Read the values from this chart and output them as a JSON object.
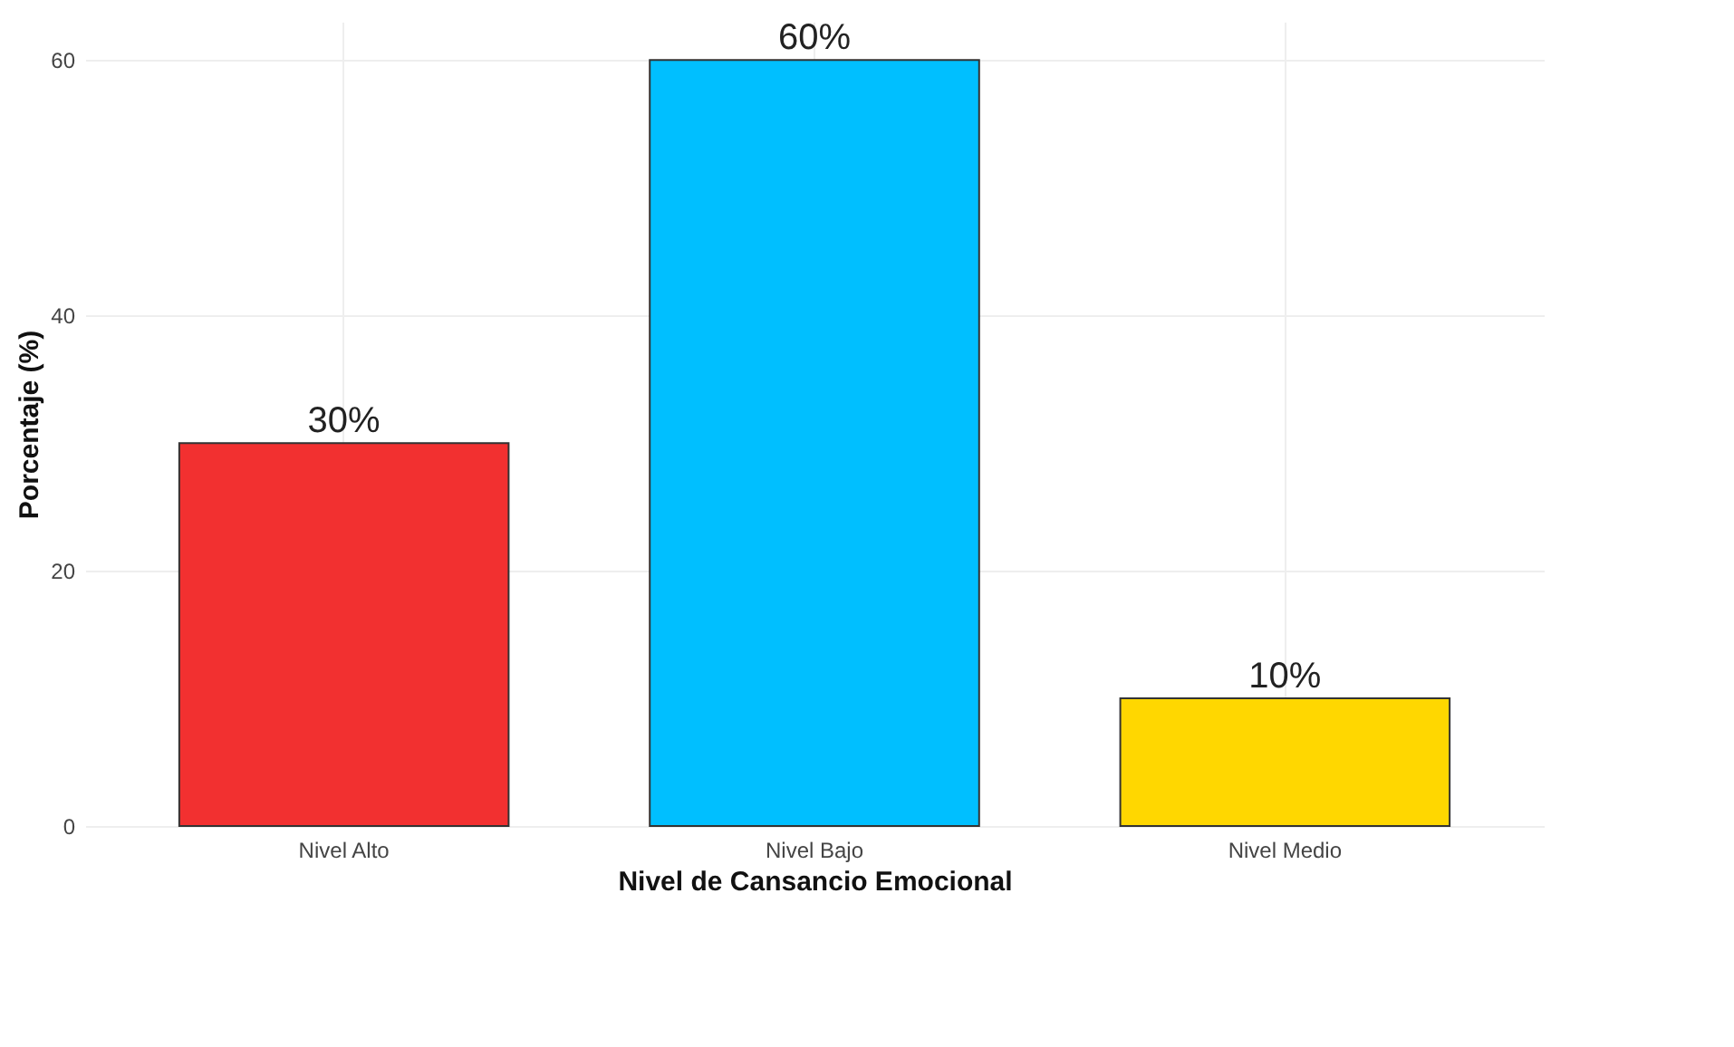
{
  "chart_data": {
    "type": "bar",
    "xlabel": "Nivel de Cansancio Emocional",
    "ylabel": "Porcentaje (%)",
    "categories": [
      "Nivel Alto",
      "Nivel Bajo",
      "Nivel Medio"
    ],
    "values": [
      30,
      60,
      10
    ],
    "colors": [
      "#f23030",
      "#00bfff",
      "#ffd700"
    ],
    "value_labels": [
      "30%",
      "60%",
      "10%"
    ],
    "ylim": [
      0,
      63
    ],
    "yticks": [
      0,
      20,
      40,
      60
    ],
    "grid": true
  }
}
